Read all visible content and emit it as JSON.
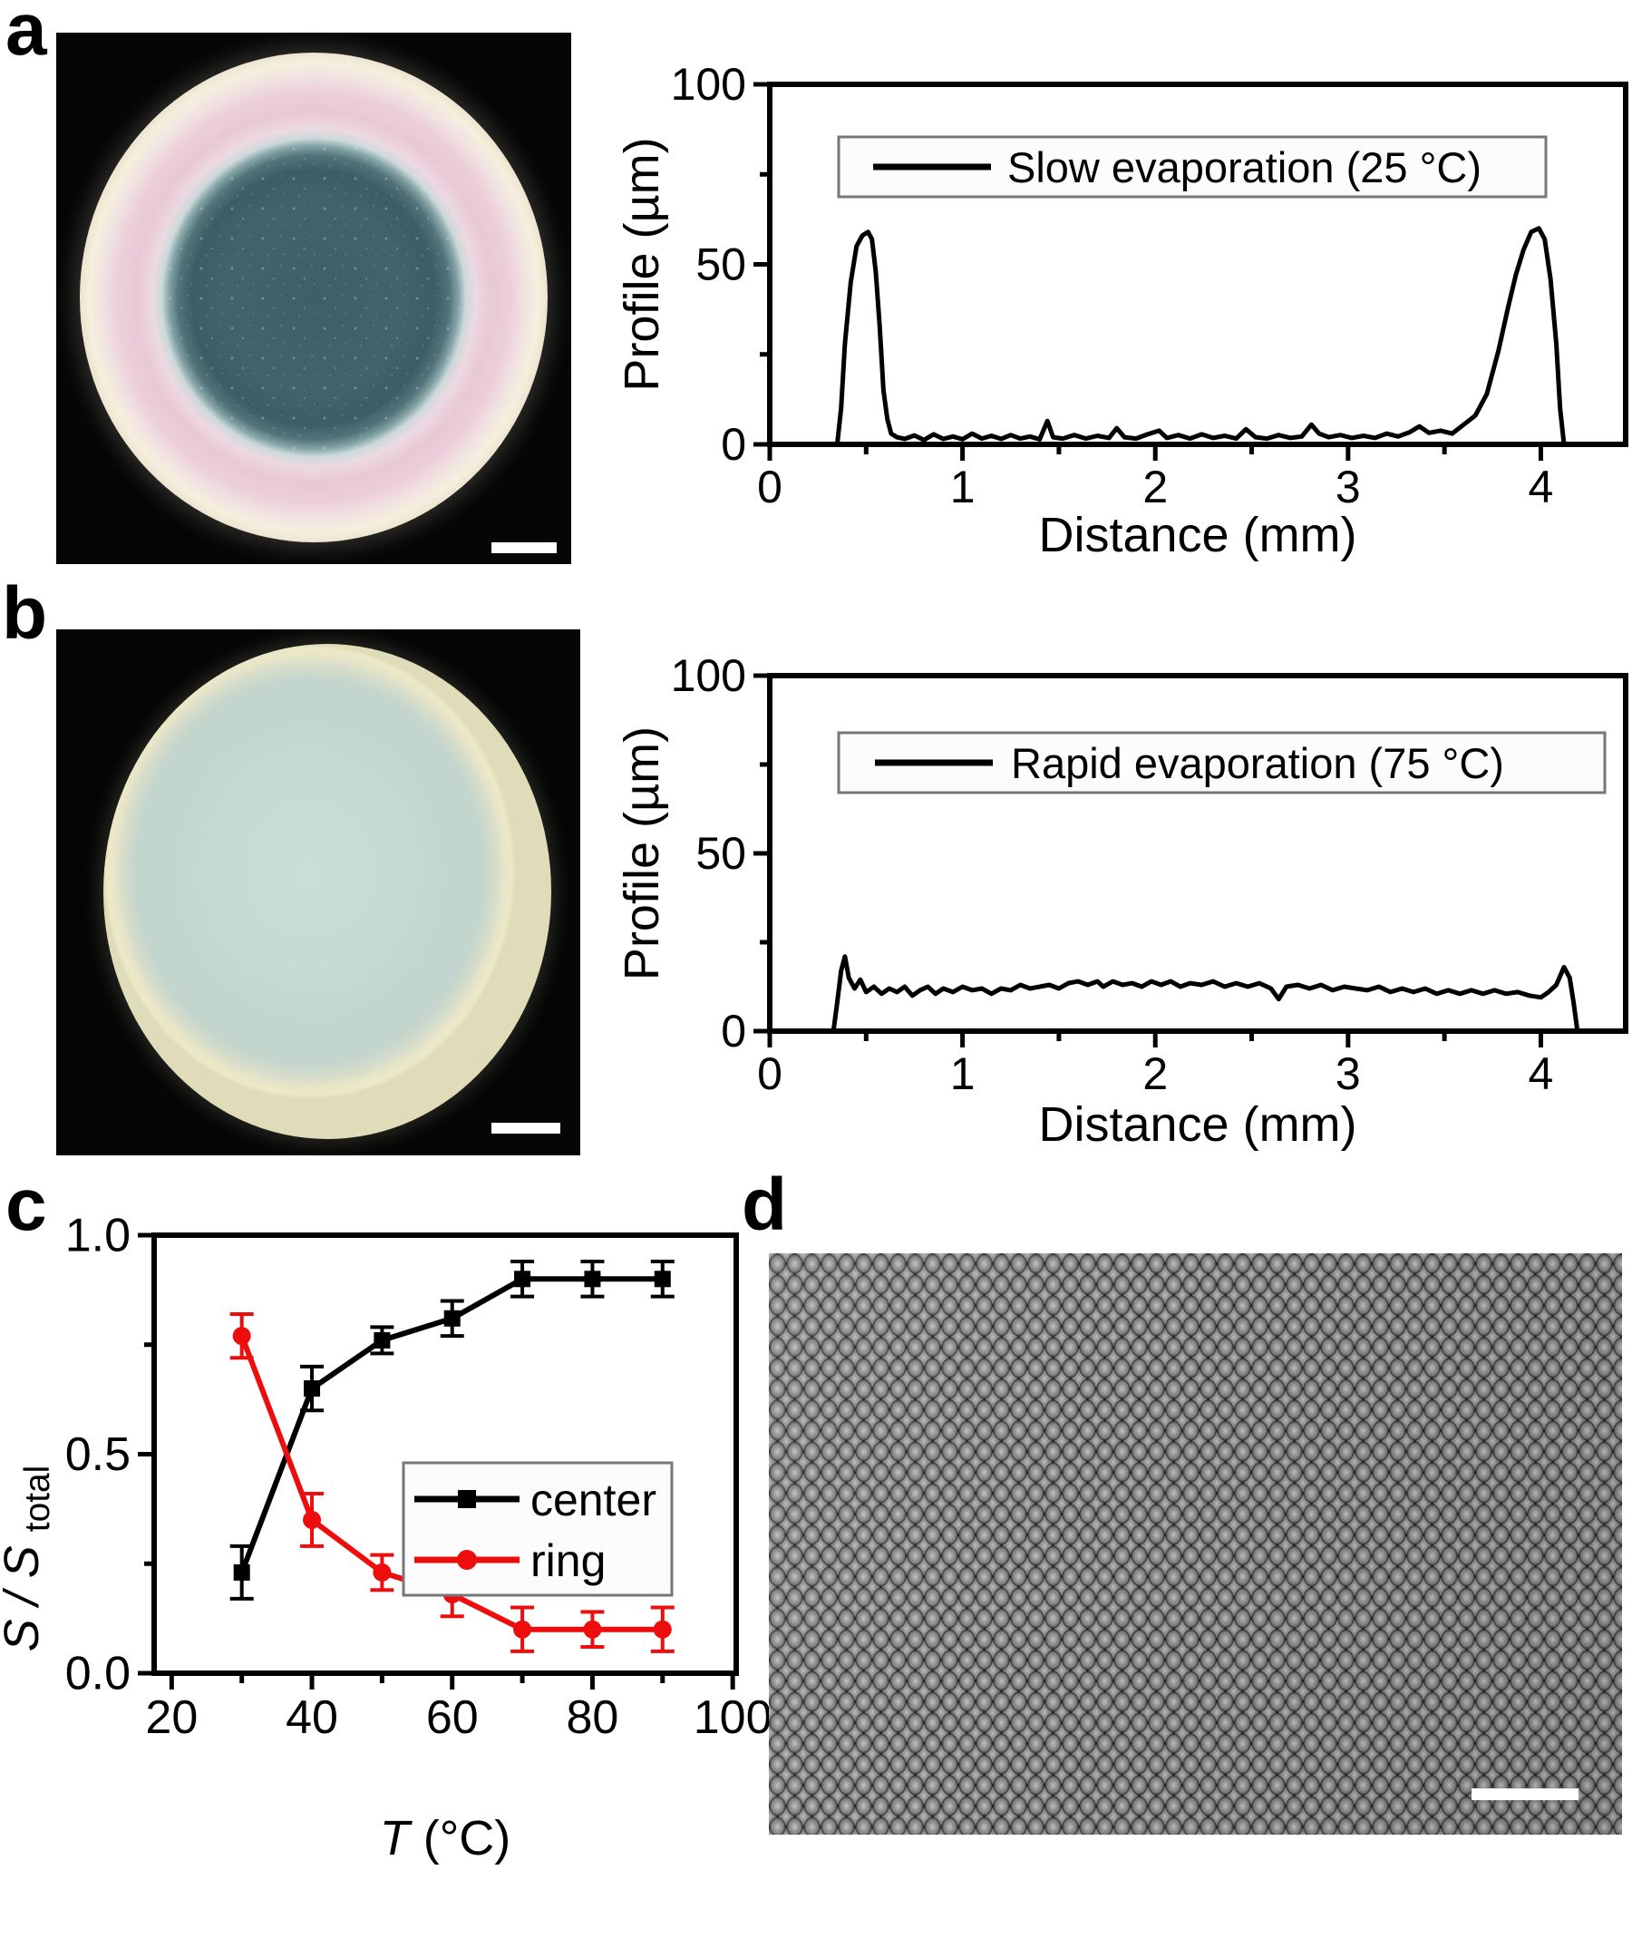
{
  "panels": {
    "a": {
      "label": "a"
    },
    "b": {
      "label": "b"
    },
    "c": {
      "label": "c"
    },
    "d": {
      "label": "d"
    }
  },
  "photos": {
    "slow_droplet": {
      "background": "#050505",
      "ring_color": "#e9c8d6",
      "center_color": "#3e5f67",
      "scale_bar": true
    },
    "rapid_droplet": {
      "background": "#050505",
      "deposit_color": "#c6d9d3",
      "rim_color": "#e9e6c8",
      "scale_bar": true
    },
    "sem": {
      "particle_color": "#9a9a9a",
      "background": "#141414",
      "scale_bar": true
    }
  },
  "accent_colors": {
    "series_black": "#000000",
    "series_red": "#ee0d0d"
  },
  "chart_data": [
    {
      "panel": "a",
      "type": "line",
      "title": "",
      "xlabel": "Distance (mm)",
      "ylabel": "Profile (µm)",
      "xlim": [
        0,
        4.44
      ],
      "ylim": [
        0,
        100
      ],
      "xticks": [
        0,
        1,
        2,
        3,
        4
      ],
      "xticks_minor": [
        0.5,
        1.5,
        2.5,
        3.5
      ],
      "yticks": [
        0,
        50,
        100
      ],
      "yticks_minor": [
        25,
        75
      ],
      "grid": false,
      "legend_position": "top-inside",
      "series": [
        {
          "name": "Slow evaporation (25 °C)",
          "color": "#000000",
          "points": [
            [
              0.35,
              0
            ],
            [
              0.37,
              10
            ],
            [
              0.39,
              28
            ],
            [
              0.42,
              45
            ],
            [
              0.45,
              55
            ],
            [
              0.48,
              58
            ],
            [
              0.51,
              59
            ],
            [
              0.53,
              57
            ],
            [
              0.55,
              48
            ],
            [
              0.57,
              33
            ],
            [
              0.59,
              15
            ],
            [
              0.61,
              7
            ],
            [
              0.63,
              3
            ],
            [
              0.66,
              2
            ],
            [
              0.7,
              1.5
            ],
            [
              0.75,
              2.5
            ],
            [
              0.8,
              1.2
            ],
            [
              0.85,
              2.8
            ],
            [
              0.9,
              1.5
            ],
            [
              0.95,
              2.2
            ],
            [
              1.0,
              1.4
            ],
            [
              1.05,
              3.0
            ],
            [
              1.1,
              1.6
            ],
            [
              1.15,
              2.4
            ],
            [
              1.2,
              1.5
            ],
            [
              1.25,
              2.6
            ],
            [
              1.3,
              1.6
            ],
            [
              1.35,
              2.2
            ],
            [
              1.4,
              1.4
            ],
            [
              1.44,
              6.5
            ],
            [
              1.47,
              2.0
            ],
            [
              1.52,
              1.6
            ],
            [
              1.58,
              2.6
            ],
            [
              1.64,
              1.6
            ],
            [
              1.7,
              2.4
            ],
            [
              1.76,
              1.8
            ],
            [
              1.8,
              4.5
            ],
            [
              1.84,
              2.0
            ],
            [
              1.9,
              1.6
            ],
            [
              1.96,
              2.8
            ],
            [
              2.02,
              3.8
            ],
            [
              2.06,
              1.8
            ],
            [
              2.12,
              2.6
            ],
            [
              2.18,
              1.6
            ],
            [
              2.24,
              2.8
            ],
            [
              2.3,
              1.8
            ],
            [
              2.36,
              2.4
            ],
            [
              2.42,
              1.6
            ],
            [
              2.47,
              4.2
            ],
            [
              2.52,
              2.0
            ],
            [
              2.58,
              1.6
            ],
            [
              2.64,
              2.6
            ],
            [
              2.7,
              1.8
            ],
            [
              2.76,
              2.2
            ],
            [
              2.81,
              5.5
            ],
            [
              2.85,
              3.0
            ],
            [
              2.9,
              2.0
            ],
            [
              2.96,
              2.6
            ],
            [
              3.02,
              1.8
            ],
            [
              3.08,
              2.4
            ],
            [
              3.14,
              1.8
            ],
            [
              3.2,
              3.0
            ],
            [
              3.26,
              2.2
            ],
            [
              3.32,
              3.4
            ],
            [
              3.37,
              5.0
            ],
            [
              3.42,
              3.2
            ],
            [
              3.48,
              3.8
            ],
            [
              3.54,
              3.0
            ],
            [
              3.6,
              5.5
            ],
            [
              3.66,
              8.0
            ],
            [
              3.72,
              14
            ],
            [
              3.78,
              26
            ],
            [
              3.83,
              38
            ],
            [
              3.87,
              47
            ],
            [
              3.91,
              54
            ],
            [
              3.95,
              59
            ],
            [
              3.99,
              60
            ],
            [
              4.02,
              57
            ],
            [
              4.05,
              46
            ],
            [
              4.08,
              28
            ],
            [
              4.1,
              10
            ],
            [
              4.12,
              0
            ]
          ]
        }
      ]
    },
    {
      "panel": "b",
      "type": "line",
      "title": "",
      "xlabel": "Distance (mm)",
      "ylabel": "Profile (µm)",
      "xlim": [
        0,
        4.44
      ],
      "ylim": [
        0,
        100
      ],
      "xticks": [
        0,
        1,
        2,
        3,
        4
      ],
      "xticks_minor": [
        0.5,
        1.5,
        2.5,
        3.5
      ],
      "yticks": [
        0,
        50,
        100
      ],
      "yticks_minor": [
        25,
        75
      ],
      "grid": false,
      "legend_position": "top-inside",
      "series": [
        {
          "name": "Rapid evaporation (75 °C)",
          "color": "#000000",
          "points": [
            [
              0.33,
              0
            ],
            [
              0.35,
              8
            ],
            [
              0.37,
              17
            ],
            [
              0.39,
              21
            ],
            [
              0.41,
              15
            ],
            [
              0.44,
              12
            ],
            [
              0.47,
              14.5
            ],
            [
              0.5,
              11
            ],
            [
              0.54,
              12.5
            ],
            [
              0.58,
              10.5
            ],
            [
              0.62,
              12
            ],
            [
              0.66,
              11
            ],
            [
              0.7,
              12.5
            ],
            [
              0.74,
              10
            ],
            [
              0.78,
              11.5
            ],
            [
              0.82,
              12.5
            ],
            [
              0.86,
              10.5
            ],
            [
              0.9,
              12
            ],
            [
              0.95,
              11
            ],
            [
              1.0,
              12.5
            ],
            [
              1.05,
              11.5
            ],
            [
              1.1,
              12
            ],
            [
              1.15,
              10.5
            ],
            [
              1.2,
              12
            ],
            [
              1.25,
              11.5
            ],
            [
              1.3,
              13
            ],
            [
              1.35,
              12
            ],
            [
              1.4,
              12.5
            ],
            [
              1.45,
              13
            ],
            [
              1.5,
              12
            ],
            [
              1.55,
              13.5
            ],
            [
              1.6,
              14
            ],
            [
              1.65,
              13
            ],
            [
              1.7,
              14
            ],
            [
              1.73,
              12.5
            ],
            [
              1.78,
              14
            ],
            [
              1.83,
              13
            ],
            [
              1.88,
              13.5
            ],
            [
              1.93,
              12.5
            ],
            [
              1.98,
              14
            ],
            [
              2.03,
              13
            ],
            [
              2.08,
              14
            ],
            [
              2.13,
              12.5
            ],
            [
              2.18,
              13.5
            ],
            [
              2.24,
              13
            ],
            [
              2.3,
              14
            ],
            [
              2.36,
              12.5
            ],
            [
              2.42,
              13.5
            ],
            [
              2.48,
              12.5
            ],
            [
              2.54,
              13.5
            ],
            [
              2.6,
              12
            ],
            [
              2.64,
              9
            ],
            [
              2.68,
              12.5
            ],
            [
              2.74,
              13
            ],
            [
              2.8,
              12
            ],
            [
              2.86,
              13
            ],
            [
              2.92,
              11.5
            ],
            [
              2.98,
              12.5
            ],
            [
              3.04,
              12
            ],
            [
              3.1,
              11.5
            ],
            [
              3.16,
              12.5
            ],
            [
              3.22,
              11
            ],
            [
              3.28,
              12
            ],
            [
              3.34,
              11
            ],
            [
              3.4,
              12
            ],
            [
              3.46,
              10.5
            ],
            [
              3.52,
              11.5
            ],
            [
              3.58,
              10.5
            ],
            [
              3.64,
              11.5
            ],
            [
              3.7,
              10.5
            ],
            [
              3.76,
              11.5
            ],
            [
              3.82,
              10.5
            ],
            [
              3.88,
              11
            ],
            [
              3.94,
              10
            ],
            [
              4.0,
              9.5
            ],
            [
              4.04,
              11
            ],
            [
              4.08,
              13
            ],
            [
              4.12,
              18
            ],
            [
              4.15,
              15
            ],
            [
              4.17,
              8
            ],
            [
              4.19,
              0
            ]
          ]
        }
      ]
    },
    {
      "panel": "c",
      "type": "line",
      "title": "",
      "xlabel": "T (°C)",
      "xlabel_parts": [
        {
          "text": "T",
          "italic": true
        },
        {
          "text": " (°C)"
        }
      ],
      "ylabel": "S / S_total",
      "ylabel_parts": [
        {
          "text": "S / S ",
          "italic": true
        },
        {
          "text": "total",
          "sub": true
        }
      ],
      "xlim": [
        17.5,
        100.5
      ],
      "ylim": [
        0,
        1.0
      ],
      "xticks": [
        20,
        40,
        60,
        80,
        100
      ],
      "xticks_minor": [
        30,
        50,
        70,
        90
      ],
      "yticks": [
        0.0,
        0.5,
        1.0
      ],
      "ytick_labels": [
        "0.0",
        "0.5",
        "1.0"
      ],
      "yticks_minor": [
        0.25,
        0.75
      ],
      "grid": false,
      "legend_position": "inside-right",
      "categories": [
        30,
        40,
        50,
        60,
        70,
        80,
        90
      ],
      "series": [
        {
          "name": "center",
          "color": "#000000",
          "marker": "square",
          "x": [
            30,
            40,
            50,
            60,
            70,
            80,
            90
          ],
          "y": [
            0.23,
            0.65,
            0.76,
            0.81,
            0.9,
            0.9,
            0.9
          ],
          "yerr": [
            0.06,
            0.05,
            0.03,
            0.04,
            0.04,
            0.04,
            0.04
          ]
        },
        {
          "name": "ring",
          "color": "#ee0d0d",
          "marker": "circle",
          "x": [
            30,
            40,
            50,
            60,
            70,
            80,
            90
          ],
          "y": [
            0.77,
            0.35,
            0.23,
            0.18,
            0.1,
            0.1,
            0.1
          ],
          "yerr": [
            0.05,
            0.06,
            0.04,
            0.05,
            0.05,
            0.04,
            0.05
          ]
        }
      ]
    }
  ]
}
